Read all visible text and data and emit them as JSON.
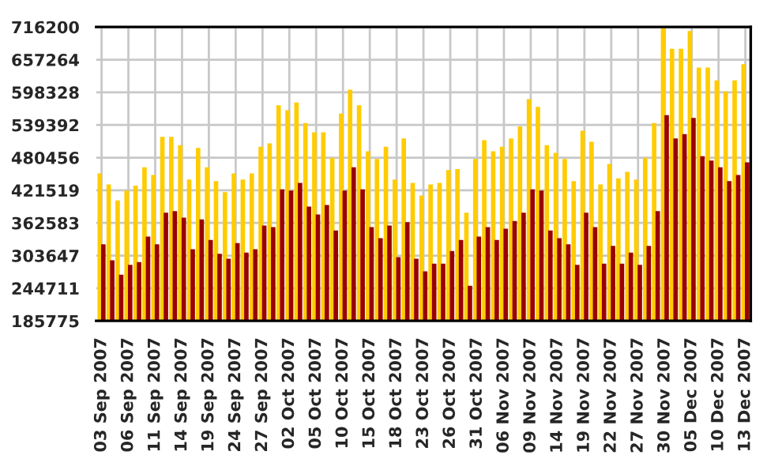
{
  "chart_data": {
    "type": "bar",
    "categories": [
      "03 Sep 2007",
      null,
      null,
      "06 Sep 2007",
      null,
      null,
      "11 Sep 2007",
      null,
      null,
      "14 Sep 2007",
      null,
      null,
      "19 Sep 2007",
      null,
      null,
      "24 Sep 2007",
      null,
      null,
      "27 Sep 2007",
      null,
      null,
      "02 Oct 2007",
      null,
      null,
      "05 Oct 2007",
      null,
      null,
      "10 Oct 2007",
      null,
      null,
      "15 Oct 2007",
      null,
      null,
      "18 Oct 2007",
      null,
      null,
      "23 Oct 2007",
      null,
      null,
      "26 Oct 2007",
      null,
      null,
      "31 Oct 2007",
      null,
      null,
      "06 Nov 2007",
      null,
      null,
      "09 Nov 2007",
      null,
      null,
      "14 Nov 2007",
      null,
      null,
      "19 Nov 2007",
      null,
      null,
      "22 Nov 2007",
      null,
      null,
      "27 Nov 2007",
      null,
      null,
      "30 Nov 2007",
      null,
      null,
      "05 Dec 2007",
      null,
      null,
      "10 Dec 2007",
      null,
      null,
      "13 Dec 2007"
    ],
    "series": [
      {
        "color": "#ffcc00",
        "values": [
          452000,
          432000,
          403000,
          421000,
          430000,
          463000,
          449000,
          518000,
          518000,
          503000,
          441000,
          498000,
          463000,
          438000,
          418000,
          452000,
          441000,
          452000,
          500000,
          506000,
          575000,
          566000,
          580000,
          543000,
          526000,
          526000,
          480000,
          560000,
          603000,
          575000,
          492000,
          478000,
          500000,
          441000,
          515000,
          435000,
          412000,
          432000,
          435000,
          458000,
          460000,
          381000,
          478000,
          512000,
          492000,
          500000,
          515000,
          537000,
          586000,
          572000,
          503000,
          489000,
          478000,
          438000,
          529000,
          509000,
          432000,
          469000,
          443000,
          455000,
          441000,
          480000,
          543000,
          714000,
          677000,
          677000,
          709000,
          643000,
          643000,
          620000,
          600000,
          620000,
          649000
        ]
      },
      {
        "color": "#990000",
        "values": [
          324000,
          295000,
          269000,
          287000,
          292000,
          338000,
          324000,
          381000,
          384000,
          372000,
          315000,
          369000,
          332000,
          307000,
          298000,
          326000,
          309000,
          315000,
          358000,
          355000,
          423000,
          421000,
          435000,
          392000,
          378000,
          395000,
          349000,
          421000,
          463000,
          423000,
          355000,
          335000,
          358000,
          301000,
          364000,
          298000,
          275000,
          289000,
          289000,
          312000,
          332000,
          249000,
          338000,
          355000,
          332000,
          352000,
          366000,
          381000,
          423000,
          421000,
          349000,
          335000,
          324000,
          287000,
          381000,
          355000,
          289000,
          321000,
          289000,
          309000,
          287000,
          321000,
          384000,
          557000,
          515000,
          523000,
          552000,
          483000,
          475000,
          463000,
          438000,
          449000,
          472000
        ]
      }
    ],
    "ylim": [
      185775,
      716200
    ],
    "yticks": [
      185775,
      244711,
      303647,
      362583,
      421519,
      480456,
      539392,
      598328,
      657264,
      716200
    ],
    "grid": true
  }
}
